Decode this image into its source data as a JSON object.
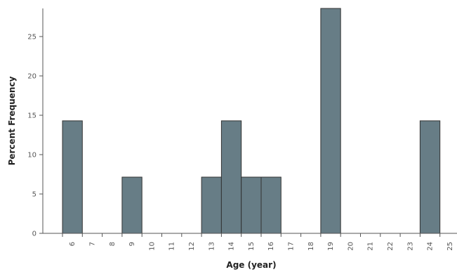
{
  "chart_data": {
    "type": "bar",
    "title": "",
    "xlabel": "Age (year)",
    "ylabel": "Percent Frequency",
    "categories": [
      "6",
      "7",
      "8",
      "9",
      "10",
      "11",
      "12",
      "13",
      "14",
      "15",
      "16",
      "17",
      "18",
      "19",
      "20",
      "21",
      "22",
      "23",
      "24",
      "25"
    ],
    "values": [
      14.29,
      0,
      0,
      7.14,
      0,
      0,
      0,
      7.14,
      14.29,
      7.14,
      7.14,
      0,
      0,
      28.57,
      0,
      0,
      0,
      0,
      14.29,
      0
    ],
    "y_ticks": [
      "0",
      "5",
      "10",
      "15",
      "20",
      "25"
    ],
    "ylim": [
      0,
      28.57
    ],
    "grid": false,
    "bar_color": "#677d86",
    "bar_edge_color": "#333333"
  }
}
